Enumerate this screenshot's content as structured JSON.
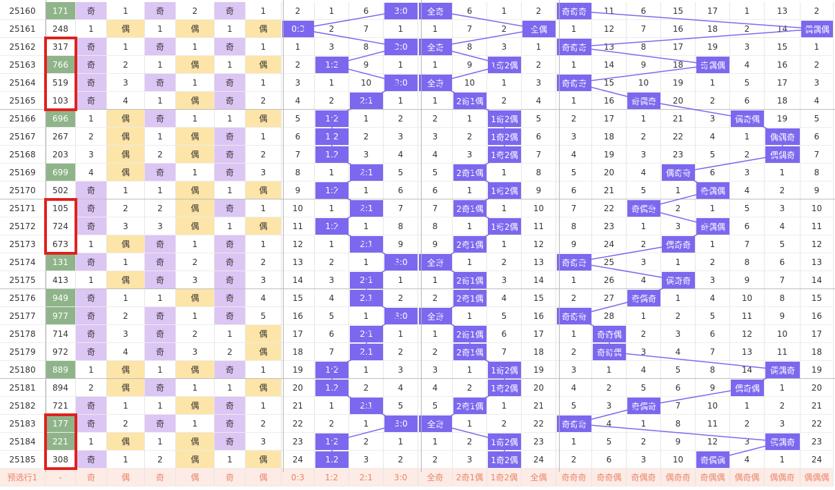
{
  "rows": [
    {
      "period": "25160",
      "num": "171",
      "o1": "奇",
      "v1": "1",
      "o2": "奇",
      "v2": "2",
      "o3": "奇",
      "v3": "1",
      "z1": "2",
      "z2": "1",
      "z3": "6",
      "z4": "3:0",
      "z5": "全奇",
      "z6": "6",
      "z7": "1",
      "z8": "2",
      "p": [
        "奇奇奇",
        "11",
        "6",
        "15",
        "17",
        "1",
        "13",
        "2"
      ]
    },
    {
      "period": "25161",
      "num": "248",
      "o1": "1",
      "v1": "偶",
      "o2": "1",
      "v2": "偶",
      "o3": "1",
      "v3": "偶",
      "z1": "0:3",
      "z2": "2",
      "z3": "7",
      "z4": "1",
      "z5": "1",
      "z6": "7",
      "z7": "2",
      "z8": "全偶",
      "p": [
        "1",
        "12",
        "7",
        "16",
        "18",
        "2",
        "14",
        "偶偶偶"
      ]
    },
    {
      "period": "25162",
      "num": "317",
      "o1": "奇",
      "v1": "1",
      "o2": "奇",
      "v2": "1",
      "o3": "奇",
      "v3": "1",
      "z1": "1",
      "z2": "3",
      "z3": "8",
      "z4": "3:0",
      "z5": "全奇",
      "z6": "8",
      "z7": "3",
      "z8": "1",
      "p": [
        "奇奇奇",
        "13",
        "8",
        "17",
        "19",
        "3",
        "15",
        "1"
      ]
    },
    {
      "period": "25163",
      "num": "766",
      "o1": "奇",
      "v1": "2",
      "o2": "1",
      "v2": "偶",
      "o3": "1",
      "v3": "偶",
      "z1": "2",
      "z2": "1:2",
      "z3": "9",
      "z4": "1",
      "z5": "1",
      "z6": "9",
      "z7": "1奇2偶",
      "z8": "2",
      "p": [
        "1",
        "14",
        "9",
        "18",
        "奇偶偶",
        "4",
        "16",
        "2"
      ]
    },
    {
      "period": "25164",
      "num": "519",
      "o1": "奇",
      "v1": "3",
      "o2": "奇",
      "v2": "1",
      "o3": "奇",
      "v3": "1",
      "z1": "3",
      "z2": "1",
      "z3": "10",
      "z4": "3:0",
      "z5": "全奇",
      "z6": "10",
      "z7": "1",
      "z8": "3",
      "p": [
        "奇奇奇",
        "15",
        "10",
        "19",
        "1",
        "5",
        "17",
        "3"
      ]
    },
    {
      "period": "25165",
      "num": "103",
      "o1": "奇",
      "v1": "4",
      "o2": "1",
      "v2": "偶",
      "o3": "奇",
      "v3": "2",
      "z1": "4",
      "z2": "2",
      "z3": "2:1",
      "z4": "1",
      "z5": "1",
      "z6": "2奇1偶",
      "z7": "2",
      "z8": "4",
      "p": [
        "1",
        "16",
        "奇偶奇",
        "20",
        "2",
        "6",
        "18",
        "4"
      ]
    },
    {
      "period": "25166",
      "num": "696",
      "o1": "1",
      "v1": "偶",
      "o2": "奇",
      "v2": "1",
      "o3": "1",
      "v3": "偶",
      "z1": "5",
      "z2": "1:2",
      "z3": "1",
      "z4": "2",
      "z5": "2",
      "z6": "1",
      "z7": "1奇2偶",
      "z8": "5",
      "p": [
        "2",
        "17",
        "1",
        "21",
        "3",
        "偶奇偶",
        "19",
        "5"
      ]
    },
    {
      "period": "25167",
      "num": "267",
      "o1": "2",
      "v1": "偶",
      "o2": "1",
      "v2": "偶",
      "o3": "奇",
      "v3": "1",
      "z1": "6",
      "z2": "1:2",
      "z3": "2",
      "z4": "3",
      "z5": "3",
      "z6": "2",
      "z7": "1奇2偶",
      "z8": "6",
      "p": [
        "3",
        "18",
        "2",
        "22",
        "4",
        "1",
        "偶偶奇",
        "6"
      ]
    },
    {
      "period": "25168",
      "num": "203",
      "o1": "3",
      "v1": "偶",
      "o2": "2",
      "v2": "偶",
      "o3": "奇",
      "v3": "2",
      "z1": "7",
      "z2": "1:2",
      "z3": "3",
      "z4": "4",
      "z5": "4",
      "z6": "3",
      "z7": "1奇2偶",
      "z8": "7",
      "p": [
        "4",
        "19",
        "3",
        "23",
        "5",
        "2",
        "偶偶奇",
        "7"
      ]
    },
    {
      "period": "25169",
      "num": "699",
      "o1": "4",
      "v1": "偶",
      "o2": "奇",
      "v2": "1",
      "o3": "奇",
      "v3": "3",
      "z1": "8",
      "z2": "1",
      "z3": "2:1",
      "z4": "5",
      "z5": "5",
      "z6": "2奇1偶",
      "z7": "1",
      "z8": "8",
      "p": [
        "5",
        "20",
        "4",
        "偶奇奇",
        "6",
        "3",
        "1",
        "8"
      ]
    },
    {
      "period": "25170",
      "num": "502",
      "o1": "奇",
      "v1": "1",
      "o2": "1",
      "v2": "偶",
      "o3": "1",
      "v3": "偶",
      "z1": "9",
      "z2": "1:2",
      "z3": "1",
      "z4": "6",
      "z5": "6",
      "z6": "1",
      "z7": "1奇2偶",
      "z8": "9",
      "p": [
        "6",
        "21",
        "5",
        "1",
        "奇偶偶",
        "4",
        "2",
        "9"
      ]
    },
    {
      "period": "25171",
      "num": "105",
      "o1": "奇",
      "v1": "2",
      "o2": "2",
      "v2": "偶",
      "o3": "奇",
      "v3": "1",
      "z1": "10",
      "z2": "1",
      "z3": "2:1",
      "z4": "7",
      "z5": "7",
      "z6": "2奇1偶",
      "z7": "1",
      "z8": "10",
      "p": [
        "7",
        "22",
        "奇偶奇",
        "2",
        "1",
        "5",
        "3",
        "10"
      ]
    },
    {
      "period": "25172",
      "num": "724",
      "o1": "奇",
      "v1": "3",
      "o2": "3",
      "v2": "偶",
      "o3": "1",
      "v3": "偶",
      "z1": "11",
      "z2": "1:2",
      "z3": "1",
      "z4": "8",
      "z5": "8",
      "z6": "1",
      "z7": "1奇2偶",
      "z8": "11",
      "p": [
        "8",
        "23",
        "1",
        "3",
        "奇偶偶",
        "6",
        "4",
        "11"
      ]
    },
    {
      "period": "25173",
      "num": "673",
      "o1": "1",
      "v1": "偶",
      "o2": "奇",
      "v2": "1",
      "o3": "奇",
      "v3": "1",
      "z1": "12",
      "z2": "1",
      "z3": "2:1",
      "z4": "9",
      "z5": "9",
      "z6": "2奇1偶",
      "z7": "1",
      "z8": "12",
      "p": [
        "9",
        "24",
        "2",
        "偶奇奇",
        "1",
        "7",
        "5",
        "12"
      ]
    },
    {
      "period": "25174",
      "num": "131",
      "o1": "奇",
      "v1": "1",
      "o2": "奇",
      "v2": "2",
      "o3": "奇",
      "v3": "2",
      "z1": "13",
      "z2": "2",
      "z3": "1",
      "z4": "3:0",
      "z5": "全奇",
      "z6": "1",
      "z7": "2",
      "z8": "13",
      "p": [
        "奇奇奇",
        "25",
        "3",
        "1",
        "2",
        "8",
        "6",
        "13"
      ]
    },
    {
      "period": "25175",
      "num": "413",
      "o1": "1",
      "v1": "偶",
      "o2": "奇",
      "v2": "3",
      "o3": "奇",
      "v3": "3",
      "z1": "14",
      "z2": "3",
      "z3": "2:1",
      "z4": "1",
      "z5": "1",
      "z6": "2奇1偶",
      "z7": "3",
      "z8": "14",
      "p": [
        "1",
        "26",
        "4",
        "偶奇奇",
        "3",
        "9",
        "7",
        "14"
      ]
    },
    {
      "period": "25176",
      "num": "949",
      "o1": "奇",
      "v1": "1",
      "o2": "1",
      "v2": "偶",
      "o3": "奇",
      "v3": "4",
      "z1": "15",
      "z2": "4",
      "z3": "2:1",
      "z4": "2",
      "z5": "2",
      "z6": "2奇1偶",
      "z7": "4",
      "z8": "15",
      "p": [
        "2",
        "27",
        "奇偶奇",
        "1",
        "4",
        "10",
        "8",
        "15"
      ]
    },
    {
      "period": "25177",
      "num": "977",
      "o1": "奇",
      "v1": "2",
      "o2": "奇",
      "v2": "1",
      "o3": "奇",
      "v3": "5",
      "z1": "16",
      "z2": "5",
      "z3": "1",
      "z4": "3:0",
      "z5": "全奇",
      "z6": "1",
      "z7": "5",
      "z8": "16",
      "p": [
        "奇奇奇",
        "28",
        "1",
        "2",
        "5",
        "11",
        "9",
        "16"
      ]
    },
    {
      "period": "25178",
      "num": "714",
      "o1": "奇",
      "v1": "3",
      "o2": "奇",
      "v2": "2",
      "o3": "1",
      "v3": "偶",
      "z1": "17",
      "z2": "6",
      "z3": "2:1",
      "z4": "1",
      "z5": "1",
      "z6": "2奇1偶",
      "z7": "6",
      "z8": "17",
      "p": [
        "1",
        "奇奇偶",
        "2",
        "3",
        "6",
        "12",
        "10",
        "17"
      ]
    },
    {
      "period": "25179",
      "num": "972",
      "o1": "奇",
      "v1": "4",
      "o2": "奇",
      "v2": "3",
      "o3": "2",
      "v3": "偶",
      "z1": "18",
      "z2": "7",
      "z3": "2:1",
      "z4": "2",
      "z5": "2",
      "z6": "2奇1偶",
      "z7": "7",
      "z8": "18",
      "p": [
        "2",
        "奇奇偶",
        "3",
        "4",
        "7",
        "13",
        "11",
        "18"
      ]
    },
    {
      "period": "25180",
      "num": "889",
      "o1": "1",
      "v1": "偶",
      "o2": "1",
      "v2": "偶",
      "o3": "奇",
      "v3": "1",
      "z1": "19",
      "z2": "1:2",
      "z3": "1",
      "z4": "3",
      "z5": "3",
      "z6": "1",
      "z7": "1奇2偶",
      "z8": "19",
      "p": [
        "3",
        "1",
        "4",
        "5",
        "8",
        "14",
        "偶偶奇",
        "19"
      ]
    },
    {
      "period": "25181",
      "num": "894",
      "o1": "2",
      "v1": "偶",
      "o2": "奇",
      "v2": "1",
      "o3": "1",
      "v3": "偶",
      "z1": "20",
      "z2": "1:2",
      "z3": "2",
      "z4": "4",
      "z5": "4",
      "z6": "2",
      "z7": "1奇2偶",
      "z8": "20",
      "p": [
        "4",
        "2",
        "5",
        "6",
        "9",
        "偶奇偶",
        "1",
        "20"
      ]
    },
    {
      "period": "25182",
      "num": "721",
      "o1": "奇",
      "v1": "1",
      "o2": "1",
      "v2": "偶",
      "o3": "奇",
      "v3": "1",
      "z1": "21",
      "z2": "1",
      "z3": "2:1",
      "z4": "5",
      "z5": "5",
      "z6": "2奇1偶",
      "z7": "1",
      "z8": "21",
      "p": [
        "5",
        "3",
        "奇偶奇",
        "7",
        "10",
        "1",
        "2",
        "21"
      ]
    },
    {
      "period": "25183",
      "num": "177",
      "o1": "奇",
      "v1": "2",
      "o2": "奇",
      "v2": "1",
      "o3": "奇",
      "v3": "2",
      "z1": "22",
      "z2": "2",
      "z3": "1",
      "z4": "3:0",
      "z5": "全奇",
      "z6": "1",
      "z7": "2",
      "z8": "22",
      "p": [
        "奇奇奇",
        "4",
        "1",
        "8",
        "11",
        "2",
        "3",
        "22"
      ]
    },
    {
      "period": "25184",
      "num": "221",
      "o1": "1",
      "v1": "偶",
      "o2": "1",
      "v2": "偶",
      "o3": "奇",
      "v3": "3",
      "z1": "23",
      "z2": "1:2",
      "z3": "2",
      "z4": "1",
      "z5": "1",
      "z6": "2",
      "z7": "1奇2偶",
      "z8": "23",
      "p": [
        "1",
        "5",
        "2",
        "9",
        "12",
        "3",
        "偶偶奇",
        "23"
      ]
    },
    {
      "period": "25185",
      "num": "308",
      "o1": "奇",
      "v1": "1",
      "o2": "2",
      "v2": "偶",
      "o3": "1",
      "v3": "偶",
      "z1": "24",
      "z2": "1:2",
      "z3": "3",
      "z4": "2",
      "z5": "2",
      "z6": "3",
      "z7": "1奇2偶",
      "z8": "24",
      "p": [
        "2",
        "6",
        "3",
        "10",
        "奇偶偶",
        "4",
        "1",
        "24"
      ]
    }
  ],
  "footer": [
    "预选行1",
    "-",
    "奇",
    "偶",
    "奇",
    "偶",
    "奇",
    "偶",
    "0:3",
    "1:2",
    "2:1",
    "3:0",
    "全奇",
    "2奇1偶",
    "1奇2偶",
    "全偶",
    "奇奇奇",
    "奇奇偶",
    "奇偶奇",
    "偶奇奇",
    "奇偶偶",
    "偶奇偶",
    "偶偶奇",
    "偶偶偶"
  ],
  "colors": {
    "purple": "#dcc6f4",
    "orange": "#fde4a8",
    "green": "#8fb48a",
    "ball": "#7b68ee",
    "highlight": "#e0201c",
    "footer_bg": "#fdebe5",
    "footer_text": "#e8866a"
  }
}
